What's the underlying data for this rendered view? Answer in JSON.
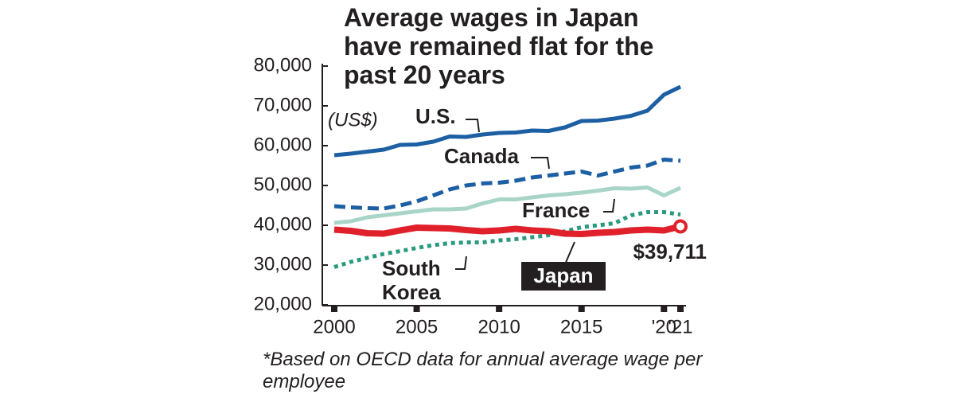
{
  "chart_data": {
    "type": "line",
    "title": "Average wages in Japan have remained flat for the past 20 years",
    "y_unit": "(US$)",
    "footnote": "*Based on OECD data for annual average wage per employee",
    "x": [
      2000,
      2001,
      2002,
      2003,
      2004,
      2005,
      2006,
      2007,
      2008,
      2009,
      2010,
      2011,
      2012,
      2013,
      2014,
      2015,
      2016,
      2017,
      2018,
      2019,
      2020,
      2021
    ],
    "xlim": [
      2000,
      2021
    ],
    "xticks": [
      2000,
      2005,
      2010,
      2015,
      {
        "value": 2020,
        "label": "'20"
      },
      {
        "value": 2021,
        "label": "'21"
      }
    ],
    "ylim": [
      20000,
      80000
    ],
    "yticks": [
      {
        "value": 20000,
        "label": "20,000"
      },
      {
        "value": 30000,
        "label": "30,000"
      },
      {
        "value": 40000,
        "label": "40,000"
      },
      {
        "value": 50000,
        "label": "50,000"
      },
      {
        "value": 60000,
        "label": "60,000"
      },
      {
        "value": 70000,
        "label": "70,000"
      },
      {
        "value": 80000,
        "label": "80,000"
      }
    ],
    "grid": false,
    "series": [
      {
        "name": "U.S.",
        "color": "#1d5fa3",
        "dash": "solid",
        "values": [
          57600,
          58000,
          58500,
          59000,
          60200,
          60300,
          61000,
          62300,
          62200,
          62800,
          63200,
          63300,
          63800,
          63700,
          64600,
          66200,
          66300,
          66800,
          67500,
          68800,
          72800,
          74800
        ]
      },
      {
        "name": "Canada",
        "color": "#1d5fa3",
        "dash": "dashed",
        "values": [
          44800,
          44500,
          44300,
          44200,
          45000,
          46000,
          47500,
          49000,
          50000,
          50500,
          50700,
          51200,
          52000,
          52500,
          53000,
          53500,
          52500,
          53500,
          54500,
          55000,
          56500,
          56200
        ]
      },
      {
        "name": "France",
        "color": "#a8d5c8",
        "dash": "solid",
        "values": [
          40600,
          41000,
          42000,
          42500,
          43000,
          43500,
          44000,
          44000,
          44200,
          45500,
          46500,
          46500,
          47000,
          47500,
          47800,
          48200,
          48700,
          49300,
          49200,
          49500,
          47500,
          49400
        ]
      },
      {
        "name": "South Korea",
        "color": "#2a9a7f",
        "dash": "dotted",
        "values": [
          29500,
          30800,
          31800,
          32800,
          33500,
          34300,
          35000,
          35500,
          35700,
          35700,
          36200,
          36500,
          37000,
          37500,
          38500,
          39500,
          40000,
          40500,
          42500,
          43300,
          43300,
          42700
        ]
      },
      {
        "name": "Japan",
        "color": "#e0202b",
        "dash": "solid",
        "values": [
          38900,
          38600,
          38000,
          37900,
          38700,
          39400,
          39300,
          39200,
          38800,
          38500,
          38700,
          39100,
          38700,
          38500,
          37900,
          37800,
          38100,
          38300,
          38700,
          38900,
          38700,
          39711
        ],
        "value_labels": [
          null,
          null,
          null,
          null,
          null,
          null,
          null,
          null,
          null,
          null,
          null,
          null,
          null,
          null,
          null,
          null,
          null,
          null,
          null,
          null,
          null,
          "$39,711"
        ]
      }
    ]
  }
}
